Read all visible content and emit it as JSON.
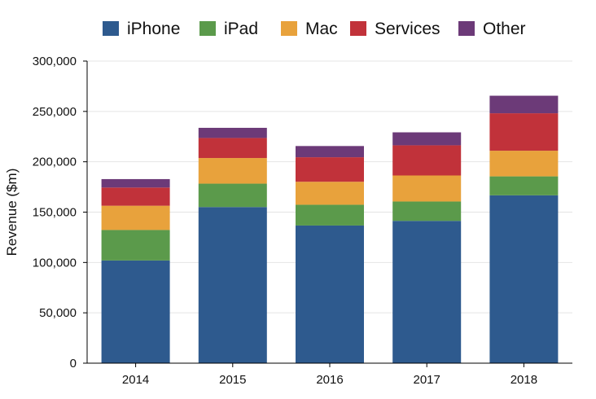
{
  "chart_data": {
    "type": "bar",
    "stacked": true,
    "categories": [
      "2014",
      "2015",
      "2016",
      "2017",
      "2018"
    ],
    "series": [
      {
        "name": "iPhone",
        "color": "#2e5a8e",
        "values": [
          101991,
          155041,
          136700,
          141319,
          166699
        ]
      },
      {
        "name": "iPad",
        "color": "#5b9a4b",
        "values": [
          30283,
          23227,
          20628,
          19222,
          18805
        ]
      },
      {
        "name": "Mac",
        "color": "#e8a23c",
        "values": [
          24079,
          25471,
          22831,
          25850,
          25484
        ]
      },
      {
        "name": "Services",
        "color": "#c1323a",
        "values": [
          18063,
          19909,
          24348,
          29980,
          37190
        ]
      },
      {
        "name": "Other",
        "color": "#6c3a78",
        "values": [
          8379,
          10067,
          11132,
          12863,
          17417
        ]
      }
    ],
    "ylabel": "Revenue ($m)",
    "xlabel": "",
    "ylim": [
      0,
      300000
    ],
    "yticks": [
      "0",
      "50,000",
      "100,000",
      "150,000",
      "200,000",
      "250,000",
      "300,000"
    ],
    "ytick_values": [
      0,
      50000,
      100000,
      150000,
      200000,
      250000,
      300000
    ],
    "grid": true,
    "legend_position": "top"
  }
}
